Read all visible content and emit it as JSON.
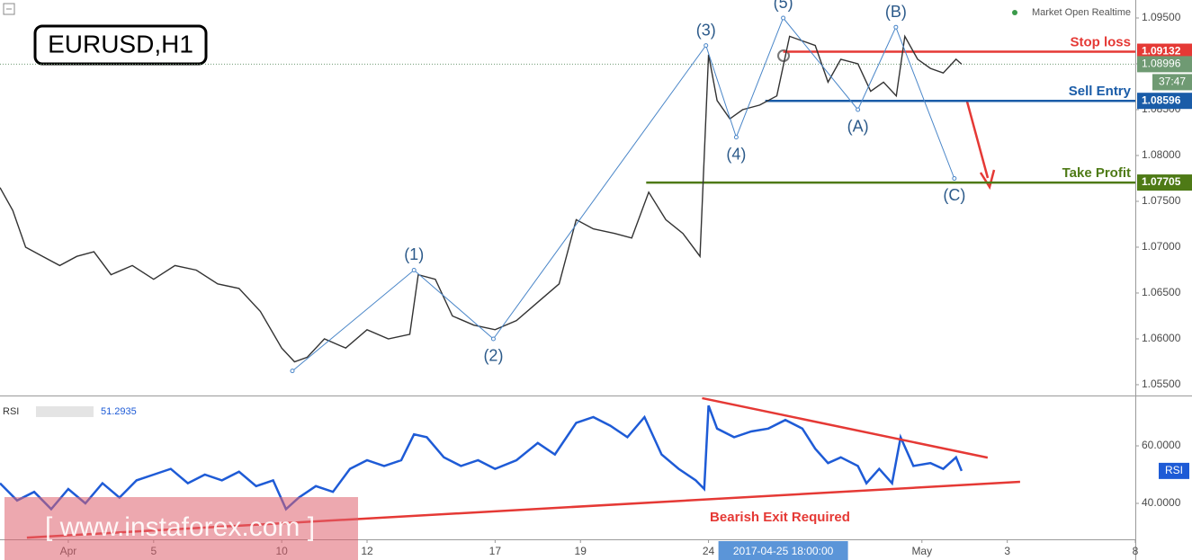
{
  "symbol_badge": "EURUSD,H1",
  "market_status": "Market Open Realtime",
  "watermark": "[ www.instaforex.com ]",
  "chart_data": [
    {
      "type": "line",
      "x": [
        -1.6,
        -1.3,
        -1.0,
        -0.6,
        -0.2,
        0.2,
        0.6,
        1.0,
        1.5,
        2.0,
        2.5,
        3.0,
        3.5,
        4.0,
        4.5,
        5.0,
        5.3,
        5.6,
        6.0,
        6.5,
        7.0,
        7.5,
        8.0,
        8.2,
        8.6,
        9.0,
        9.5,
        10.0,
        10.5,
        11.0,
        11.5,
        11.9,
        12.3,
        12.8,
        13.2,
        13.6,
        14.0,
        14.4,
        14.8,
        15.0,
        15.2,
        15.5,
        15.8,
        16.2,
        16.6,
        16.9,
        17.2,
        17.5,
        17.8,
        18.1,
        18.5,
        18.8,
        19.1,
        19.4,
        19.6,
        19.9,
        20.2,
        20.5,
        20.8,
        20.93
      ],
      "values": [
        1.0765,
        1.074,
        1.07,
        1.069,
        1.068,
        1.069,
        1.0695,
        1.067,
        1.068,
        1.0665,
        1.068,
        1.0675,
        1.066,
        1.0655,
        1.063,
        1.059,
        1.0575,
        1.058,
        1.06,
        1.059,
        1.061,
        1.06,
        1.0605,
        1.067,
        1.0665,
        1.0625,
        1.0615,
        1.061,
        1.062,
        1.064,
        1.066,
        1.073,
        1.072,
        1.0715,
        1.071,
        1.076,
        1.073,
        1.0715,
        1.069,
        1.091,
        1.086,
        1.084,
        1.085,
        1.0855,
        1.0865,
        1.093,
        1.0925,
        1.092,
        1.088,
        1.0905,
        1.09,
        1.087,
        1.088,
        1.0865,
        1.093,
        1.0905,
        1.0895,
        1.089,
        1.0905,
        1.08996
      ],
      "color": "#333333",
      "xlim": [
        -1.6,
        25.0
      ],
      "ylim": [
        1.05382,
        1.09696
      ],
      "yticks": [
        {
          "value": 1.055,
          "label": "1.05500"
        },
        {
          "value": 1.06,
          "label": "1.06000"
        },
        {
          "value": 1.065,
          "label": "1.06500"
        },
        {
          "value": 1.07,
          "label": "1.07000"
        },
        {
          "value": 1.075,
          "label": "1.07500"
        },
        {
          "value": 1.08,
          "label": "1.08000"
        },
        {
          "value": 1.085,
          "label": "1.08500"
        },
        {
          "value": 1.09,
          "label": "1.09000"
        },
        {
          "value": 1.095,
          "label": "1.09500"
        }
      ],
      "xticks": [
        {
          "value": 0,
          "label": "Apr"
        },
        {
          "value": 2,
          "label": "5"
        },
        {
          "value": 5,
          "label": "10"
        },
        {
          "value": 7,
          "label": "12"
        },
        {
          "value": 10,
          "label": "17"
        },
        {
          "value": 12,
          "label": "19"
        },
        {
          "value": 15,
          "label": "24"
        },
        {
          "value": 20,
          "label": "May"
        },
        {
          "value": 22,
          "label": "3"
        },
        {
          "value": 25,
          "label": "8"
        }
      ],
      "cursor": {
        "value": 16.75,
        "label": "2017-04-25 18:00:00"
      },
      "last_price": 1.08996,
      "last_price_color": "#6f9a73",
      "countdown": "37:47",
      "levels": [
        {
          "name": "Stop loss",
          "value": 1.09132,
          "color": "#e53935",
          "x_start": 16.75
        },
        {
          "name": "Sell Entry",
          "value": 1.08596,
          "color": "#1a5ca8",
          "x_start": 16.33
        },
        {
          "name": "Take Profit",
          "value": 1.07705,
          "color": "#4e7a16",
          "x_start": 13.54
        }
      ],
      "waves": {
        "labels": [
          null,
          "(1)",
          "(2)",
          "(3)",
          "(4)",
          "(5)",
          "(A)",
          "(B)",
          "(C)"
        ],
        "x": [
          5.25,
          8.1,
          9.96,
          14.94,
          15.65,
          16.75,
          18.5,
          19.39,
          20.76
        ],
        "y": [
          1.0565,
          1.0675,
          1.06,
          1.092,
          1.082,
          1.095,
          1.085,
          1.094,
          1.0775
        ],
        "color": "#4a86c8"
      }
    },
    {
      "type": "line",
      "name": "RSI",
      "x": [
        -1.6,
        -1.2,
        -0.8,
        -0.4,
        0,
        0.4,
        0.8,
        1.2,
        1.6,
        2.0,
        2.4,
        2.8,
        3.2,
        3.6,
        4.0,
        4.4,
        4.8,
        5.1,
        5.4,
        5.8,
        6.2,
        6.6,
        7.0,
        7.4,
        7.8,
        8.1,
        8.4,
        8.8,
        9.2,
        9.6,
        10.0,
        10.5,
        11.0,
        11.4,
        11.9,
        12.3,
        12.7,
        13.1,
        13.5,
        13.9,
        14.3,
        14.7,
        14.9,
        15.0,
        15.2,
        15.6,
        16.0,
        16.4,
        16.8,
        17.2,
        17.5,
        17.8,
        18.1,
        18.5,
        18.7,
        19.0,
        19.3,
        19.5,
        19.8,
        20.2,
        20.5,
        20.8,
        20.93
      ],
      "values": [
        47,
        41,
        44,
        38,
        45,
        40,
        47,
        42,
        48,
        50,
        52,
        47,
        50,
        48,
        51,
        46,
        48,
        38,
        42,
        46,
        44,
        52,
        55,
        53,
        55,
        64,
        63,
        56,
        53,
        55,
        52,
        55,
        61,
        57,
        68,
        70,
        67,
        63,
        70,
        57,
        52,
        48,
        45,
        74,
        66,
        63,
        65,
        66,
        69,
        66,
        59,
        54,
        56,
        53,
        47,
        52,
        47,
        63,
        53,
        54,
        52,
        56,
        51.2935
      ],
      "color": "#1e5bd6",
      "xlim": [
        -1.6,
        25.0
      ],
      "ylim": [
        27.5,
        77.2
      ],
      "yticks": [
        {
          "value": 40,
          "label": "40.0000"
        },
        {
          "value": 60,
          "label": "60.0000"
        }
      ],
      "trendlines": [
        {
          "x": [
            14.85,
            21.54
          ],
          "y": [
            76.6,
            55.9
          ],
          "color": "#e53935"
        },
        {
          "x": [
            -0.97,
            22.3
          ],
          "y": [
            28.1,
            47.5
          ],
          "color": "#e53935"
        }
      ],
      "annotation": "Bearish Exit Required"
    }
  ]
}
